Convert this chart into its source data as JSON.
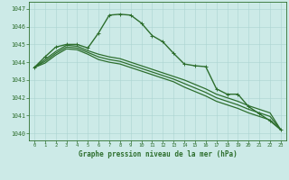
{
  "bg_color": "#cceae7",
  "grid_color": "#aad4d0",
  "line_color": "#2d6e2d",
  "title": "Graphe pression niveau de la mer (hPa)",
  "ylim": [
    1039.6,
    1047.4
  ],
  "yticks": [
    1040,
    1041,
    1042,
    1043,
    1044,
    1045,
    1046,
    1047
  ],
  "xlim": [
    -0.5,
    23.5
  ],
  "xticks": [
    0,
    1,
    2,
    3,
    4,
    5,
    6,
    7,
    8,
    9,
    10,
    11,
    12,
    13,
    14,
    15,
    16,
    17,
    18,
    19,
    20,
    21,
    22,
    23
  ],
  "series": [
    {
      "x": [
        0,
        1,
        2,
        3,
        4,
        5,
        6,
        7,
        8,
        9,
        10,
        11,
        12,
        13,
        14,
        15,
        16,
        17,
        18,
        19,
        20,
        21,
        22,
        23
      ],
      "y": [
        1043.7,
        1044.3,
        1044.85,
        1045.0,
        1045.0,
        1044.8,
        1045.65,
        1046.65,
        1046.7,
        1046.65,
        1046.2,
        1045.5,
        1045.15,
        1044.5,
        1043.9,
        1043.8,
        1043.75,
        1042.5,
        1042.2,
        1042.2,
        1041.5,
        1041.1,
        1040.7,
        1040.2
      ],
      "has_markers": true,
      "linewidth": 1.0
    },
    {
      "x": [
        0,
        1,
        2,
        3,
        4,
        5,
        6,
        7,
        8,
        9,
        10,
        11,
        12,
        13,
        14,
        15,
        16,
        17,
        18,
        19,
        20,
        21,
        22,
        23
      ],
      "y": [
        1043.7,
        1044.15,
        1044.6,
        1044.95,
        1044.9,
        1044.65,
        1044.45,
        1044.3,
        1044.2,
        1044.0,
        1043.8,
        1043.6,
        1043.4,
        1043.2,
        1043.0,
        1042.75,
        1042.5,
        1042.2,
        1042.0,
        1041.8,
        1041.55,
        1041.35,
        1041.15,
        1040.2
      ],
      "has_markers": false,
      "linewidth": 0.9
    },
    {
      "x": [
        0,
        1,
        2,
        3,
        4,
        5,
        6,
        7,
        8,
        9,
        10,
        11,
        12,
        13,
        14,
        15,
        16,
        17,
        18,
        19,
        20,
        21,
        22,
        23
      ],
      "y": [
        1043.7,
        1044.05,
        1044.5,
        1044.85,
        1044.8,
        1044.55,
        1044.3,
        1044.15,
        1044.05,
        1043.85,
        1043.65,
        1043.45,
        1043.25,
        1043.05,
        1042.8,
        1042.55,
        1042.3,
        1042.0,
        1041.8,
        1041.6,
        1041.35,
        1041.15,
        1040.95,
        1040.2
      ],
      "has_markers": false,
      "linewidth": 0.9
    },
    {
      "x": [
        0,
        1,
        2,
        3,
        4,
        5,
        6,
        7,
        8,
        9,
        10,
        11,
        12,
        13,
        14,
        15,
        16,
        17,
        18,
        19,
        20,
        21,
        22,
        23
      ],
      "y": [
        1043.7,
        1043.95,
        1044.4,
        1044.75,
        1044.7,
        1044.45,
        1044.15,
        1044.0,
        1043.9,
        1043.7,
        1043.5,
        1043.3,
        1043.1,
        1042.9,
        1042.6,
        1042.35,
        1042.1,
        1041.8,
        1041.6,
        1041.4,
        1041.15,
        1040.95,
        1040.75,
        1040.2
      ],
      "has_markers": false,
      "linewidth": 0.9
    }
  ]
}
